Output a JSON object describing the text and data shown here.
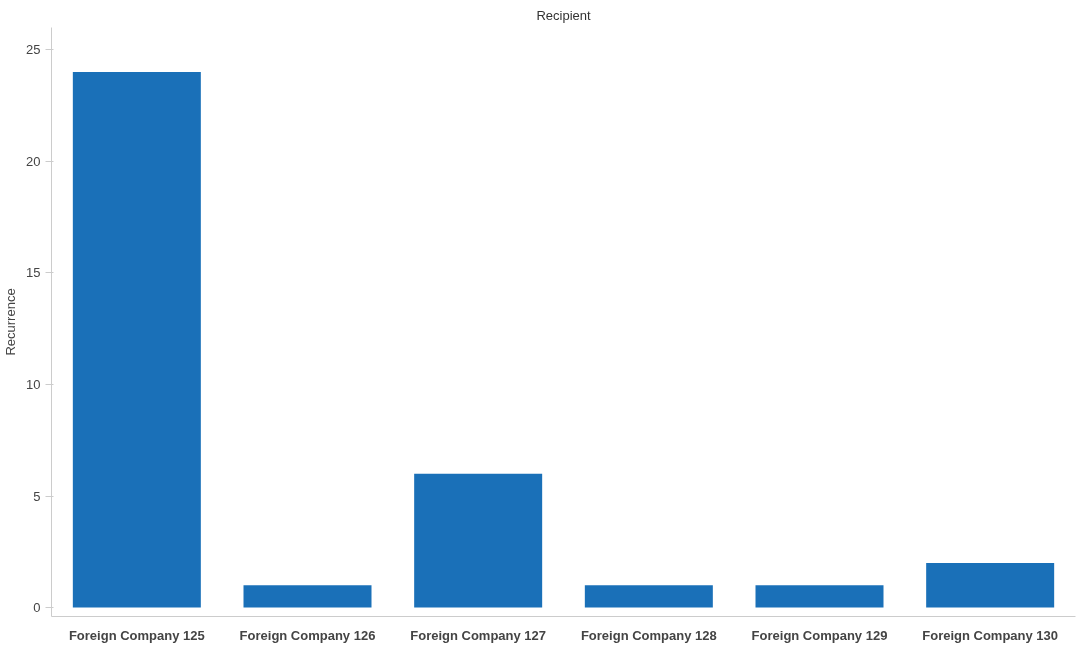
{
  "chart_data": {
    "type": "bar",
    "title": "Recipient",
    "ylabel": "Recurrence",
    "categories": [
      "Foreign Company 125",
      "Foreign Company 126",
      "Foreign Company 127",
      "Foreign Company 128",
      "Foreign Company 129",
      "Foreign Company 130"
    ],
    "values": [
      24,
      1,
      6,
      1,
      1,
      2
    ],
    "color": "#1a70b8",
    "ylim": [
      -0.4,
      26
    ],
    "yticks": [
      0,
      5,
      10,
      15,
      20,
      25
    ],
    "grid": false
  }
}
